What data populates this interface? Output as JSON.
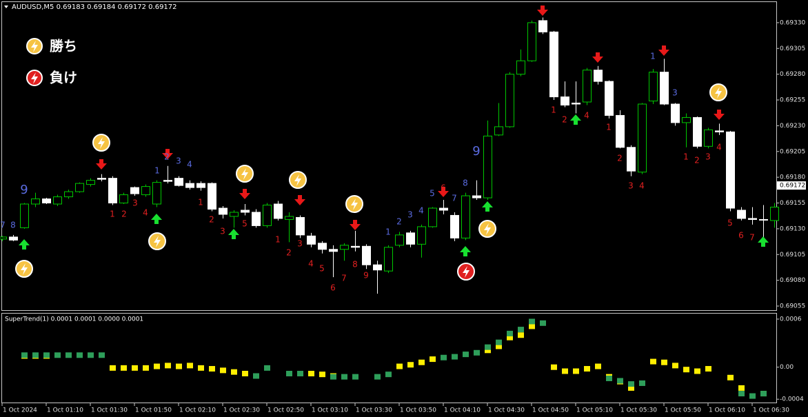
{
  "chart_data": [
    {
      "type": "candlestick",
      "title": "AUDUSD,M5  0.69183 0.69184 0.69172 0.69172",
      "categories": [
        "1 Oct 2024",
        null,
        null,
        null,
        "1 Oct 01:10",
        null,
        null,
        null,
        "1 Oct 01:30",
        null,
        null,
        null,
        "1 Oct 01:50",
        null,
        null,
        null,
        "1 Oct 02:10",
        null,
        null,
        null,
        "1 Oct 02:30",
        null,
        null,
        null,
        "1 Oct 02:50",
        null,
        null,
        null,
        "1 Oct 03:10",
        null,
        null,
        null,
        "1 Oct 03:30",
        null,
        null,
        null,
        "1 Oct 03:50",
        null,
        null,
        null,
        "1 Oct 04:10",
        null,
        null,
        null,
        "1 Oct 04:30",
        null,
        null,
        null,
        "1 Oct 04:50",
        null,
        null,
        null,
        "1 Oct 05:10",
        null,
        null,
        null,
        "1 Oct 05:30",
        null,
        null,
        null,
        "1 Oct 05:50",
        null,
        null,
        null,
        "1 Oct 06:10",
        null,
        null,
        null,
        "1 Oct 06:30",
        null,
        null
      ],
      "open": [
        0.6912,
        0.69122,
        0.69131,
        0.69154,
        0.69159,
        0.69154,
        0.69161,
        0.69166,
        0.69173,
        0.69179,
        0.69179,
        0.69155,
        0.6917,
        0.69163,
        0.69154,
        0.69177,
        0.69179,
        0.69174,
        0.69174,
        0.69174,
        0.6915,
        0.69142,
        0.69148,
        0.69146,
        0.69133,
        0.69154,
        0.69139,
        0.69141,
        0.69123,
        0.69116,
        0.6911,
        0.6911,
        0.69113,
        0.69113,
        0.69095,
        0.69089,
        0.69114,
        0.69126,
        0.69115,
        0.69132,
        0.6915,
        0.69143,
        0.69121,
        0.69162,
        0.6916,
        0.69221,
        0.69229,
        0.6928,
        0.69293,
        0.69332,
        0.69321,
        0.69258,
        0.69252,
        0.69253,
        0.69284,
        0.69273,
        0.6924,
        0.69209,
        0.69185,
        0.69254,
        0.69282,
        0.69251,
        0.69233,
        0.69238,
        0.6921,
        0.69225,
        0.69224,
        0.69148,
        0.6914,
        0.69139,
        0.69138
      ],
      "high": [
        0.69123,
        0.69124,
        0.69155,
        0.69165,
        0.6916,
        0.69163,
        0.69168,
        0.69175,
        0.69179,
        0.69183,
        0.69181,
        0.69165,
        0.69171,
        0.69173,
        0.69177,
        0.69191,
        0.69181,
        0.69177,
        0.69176,
        0.69175,
        0.69152,
        0.69148,
        0.69154,
        0.69149,
        0.69155,
        0.69157,
        0.69146,
        0.69143,
        0.69126,
        0.69118,
        0.69114,
        0.69116,
        0.69128,
        0.69115,
        0.69099,
        0.69114,
        0.69127,
        0.69128,
        0.69134,
        0.69151,
        0.69158,
        0.69146,
        0.69165,
        0.69177,
        0.69235,
        0.69252,
        0.69282,
        0.69304,
        0.69332,
        0.69335,
        0.69322,
        0.69273,
        0.69273,
        0.69286,
        0.69288,
        0.69274,
        0.69245,
        0.69211,
        0.69252,
        0.69285,
        0.69295,
        0.69252,
        0.69242,
        0.69239,
        0.69228,
        0.69232,
        0.69225,
        0.69151,
        0.69151,
        0.69153,
        0.69155
      ],
      "low": [
        0.69118,
        0.69118,
        0.6913,
        0.69151,
        0.69154,
        0.69152,
        0.69159,
        0.69165,
        0.69171,
        0.69176,
        0.69153,
        0.69154,
        0.69162,
        0.69161,
        0.69151,
        0.69174,
        0.69171,
        0.69168,
        0.69167,
        0.69147,
        0.6914,
        0.69131,
        0.69143,
        0.69131,
        0.69131,
        0.69138,
        0.69117,
        0.69121,
        0.69112,
        0.69106,
        0.69083,
        0.69099,
        0.69108,
        0.69091,
        0.69067,
        0.69087,
        0.69112,
        0.69112,
        0.69102,
        0.69131,
        0.69144,
        0.69118,
        0.69119,
        0.69158,
        0.69158,
        0.6922,
        0.69228,
        0.69278,
        0.69292,
        0.69319,
        0.69255,
        0.69248,
        0.69242,
        0.6925,
        0.6927,
        0.69237,
        0.69208,
        0.69181,
        0.69183,
        0.69251,
        0.6925,
        0.6923,
        0.69209,
        0.69208,
        0.69208,
        0.69221,
        0.69147,
        0.69138,
        0.69134,
        0.69121,
        0.69131
      ],
      "close": [
        0.69122,
        0.69119,
        0.69154,
        0.69159,
        0.69155,
        0.69161,
        0.69166,
        0.69174,
        0.69177,
        0.69178,
        0.69155,
        0.69163,
        0.69164,
        0.69171,
        0.69175,
        0.69176,
        0.69172,
        0.6917,
        0.6917,
        0.69149,
        0.69144,
        0.69146,
        0.69146,
        0.69133,
        0.69153,
        0.6914,
        0.69142,
        0.69124,
        0.69115,
        0.6911,
        0.69108,
        0.69114,
        0.69112,
        0.69095,
        0.6909,
        0.69112,
        0.69124,
        0.69115,
        0.69132,
        0.6915,
        0.69148,
        0.69121,
        0.69162,
        0.6916,
        0.6922,
        0.69229,
        0.6928,
        0.69293,
        0.6933,
        0.69321,
        0.69258,
        0.6925,
        0.69251,
        0.69284,
        0.69273,
        0.6924,
        0.69209,
        0.69186,
        0.69251,
        0.69282,
        0.69251,
        0.69233,
        0.69238,
        0.6921,
        0.69226,
        0.69224,
        0.6915,
        0.6914,
        0.69139,
        0.69139,
        0.69151
      ],
      "up_color": "#00c800",
      "down_color": "#ffffff",
      "current_price": 0.69172,
      "ylim": [
        0.69051,
        0.6935
      ],
      "yticks": [
        {
          "value": 0.69055,
          "label": "0.69055"
        },
        {
          "value": 0.6908,
          "label": "0.69080"
        },
        {
          "value": 0.69105,
          "label": "0.69105"
        },
        {
          "value": 0.6913,
          "label": "0.69130"
        },
        {
          "value": 0.69155,
          "label": "0.69155"
        },
        {
          "value": 0.6918,
          "label": "0.69180"
        },
        {
          "value": 0.69205,
          "label": "0.69205"
        },
        {
          "value": 0.6923,
          "label": "0.69230"
        },
        {
          "value": 0.69255,
          "label": "0.69255"
        },
        {
          "value": 0.6928,
          "label": "0.69280"
        },
        {
          "value": 0.69305,
          "label": "0.69305"
        },
        {
          "value": 0.6933,
          "label": "0.69330"
        }
      ],
      "annotations": [
        {
          "text": "7",
          "color": "#5a6be0"
        },
        {
          "text": "8",
          "color": "#5a6be0"
        },
        {
          "text": "9",
          "color": "#5a6be0"
        },
        {
          "text": "1",
          "color": "#e02020"
        },
        {
          "text": "2",
          "color": "#e02020"
        },
        {
          "text": "3",
          "color": "#e02020"
        },
        {
          "text": "4",
          "color": "#e02020"
        },
        {
          "text": "1",
          "color": "#5a6be0"
        },
        {
          "text": "2",
          "color": "#5a6be0"
        },
        {
          "text": "3",
          "color": "#5a6be0"
        },
        {
          "text": "4",
          "color": "#5a6be0"
        },
        {
          "text": "1",
          "color": "#e02020"
        },
        {
          "text": "2",
          "color": "#e02020"
        },
        {
          "text": "3",
          "color": "#e02020"
        },
        {
          "text": "5",
          "color": "#e02020"
        },
        {
          "text": "1",
          "color": "#e02020"
        },
        {
          "text": "2",
          "color": "#e02020"
        },
        {
          "text": "3",
          "color": "#e02020"
        },
        {
          "text": "4",
          "color": "#e02020"
        },
        {
          "text": "5",
          "color": "#e02020"
        },
        {
          "text": "6",
          "color": "#e02020"
        },
        {
          "text": "7",
          "color": "#e02020"
        },
        {
          "text": "8",
          "color": "#e02020"
        },
        {
          "text": "9",
          "color": "#e02020"
        },
        {
          "text": "1",
          "color": "#5a6be0"
        },
        {
          "text": "2",
          "color": "#5a6be0"
        },
        {
          "text": "3",
          "color": "#5a6be0"
        },
        {
          "text": "4",
          "color": "#5a6be0"
        },
        {
          "text": "5",
          "color": "#5a6be0"
        },
        {
          "text": "6",
          "color": "#e02020"
        },
        {
          "text": "7",
          "color": "#5a6be0"
        },
        {
          "text": "8",
          "color": "#5a6be0"
        },
        {
          "text": "9",
          "color": "#5a6be0"
        },
        {
          "text": "1",
          "color": "#e02020"
        },
        {
          "text": "2",
          "color": "#e02020"
        },
        {
          "text": "4",
          "color": "#e02020"
        },
        {
          "text": "1",
          "color": "#e02020"
        },
        {
          "text": "1",
          "color": "#e02020"
        },
        {
          "text": "2",
          "color": "#e02020"
        },
        {
          "text": "3",
          "color": "#e02020"
        },
        {
          "text": "4",
          "color": "#e02020"
        },
        {
          "text": "1",
          "color": "#5a6be0"
        },
        {
          "text": "2",
          "color": "#e02020"
        },
        {
          "text": "3",
          "color": "#5a6be0"
        },
        {
          "text": "1",
          "color": "#e02020"
        },
        {
          "text": "2",
          "color": "#e02020"
        },
        {
          "text": "3",
          "color": "#e02020"
        },
        {
          "text": "4",
          "color": "#e02020"
        },
        {
          "text": "5",
          "color": "#e02020"
        },
        {
          "text": "6",
          "color": "#e02020"
        },
        {
          "text": "7",
          "color": "#e02020"
        }
      ]
    },
    {
      "type": "segments",
      "title": "SuperTrend(1) 0.0001 0.0001 0.0000 0.0001",
      "series": [
        {
          "color": "#ffee00",
          "values": [
            null,
            null,
            0.00014,
            0.00014,
            0.00014,
            null,
            null,
            null,
            null,
            null,
            -1e-05,
            -1e-05,
            -1e-05,
            -1e-05,
            1e-05,
            2e-05,
            1e-05,
            2e-05,
            -1e-05,
            -2e-05,
            -4e-05,
            -6e-05,
            -8e-05,
            null,
            null,
            null,
            null,
            null,
            -8e-05,
            -9e-05,
            -0.00011,
            null,
            null,
            null,
            null,
            null,
            1e-05,
            3e-05,
            6e-05,
            0.0001,
            null,
            null,
            null,
            null,
            0.00021,
            0.00026,
            0.00037,
            0.0004,
            0.00051,
            null,
            0,
            -5e-05,
            -5e-05,
            -2e-05,
            1e-05,
            -0.00012,
            -0.00018,
            -0.00026,
            null,
            7e-05,
            6e-05,
            2e-05,
            -3e-05,
            -5e-05,
            -2e-05,
            null,
            -0.00013,
            -0.00026,
            null,
            -0.00033,
            null
          ]
        },
        {
          "color": "#2e9e5a",
          "values": [
            null,
            null,
            0.00015,
            0.00015,
            0.00015,
            0.00015,
            0.00015,
            0.00015,
            0.00015,
            0.00015,
            null,
            null,
            null,
            null,
            null,
            null,
            null,
            null,
            null,
            null,
            null,
            null,
            null,
            -0.00011,
            -1e-05,
            null,
            -8e-05,
            -8e-05,
            null,
            null,
            -0.00012,
            -0.00012,
            -0.00012,
            null,
            -0.00012,
            -9e-05,
            null,
            null,
            null,
            null,
            0.00012,
            0.00013,
            0.00016,
            0.00018,
            0.00025,
            0.00031,
            0.00042,
            0.00047,
            0.00057,
            0.00055,
            null,
            null,
            null,
            null,
            null,
            -0.00014,
            -0.00017,
            -0.00021,
            -0.0002,
            null,
            null,
            null,
            null,
            null,
            null,
            null,
            null,
            -0.00033,
            -0.00036,
            -0.00033,
            null
          ]
        }
      ],
      "ylim": [
        -0.00045,
        0.00066
      ],
      "yticks": [
        -0.0004,
        {
          "value": 0,
          "label": "0.00"
        },
        0.0006
      ]
    }
  ],
  "legend": [
    {
      "label": "勝ち"
    },
    {
      "label": "負け"
    }
  ]
}
